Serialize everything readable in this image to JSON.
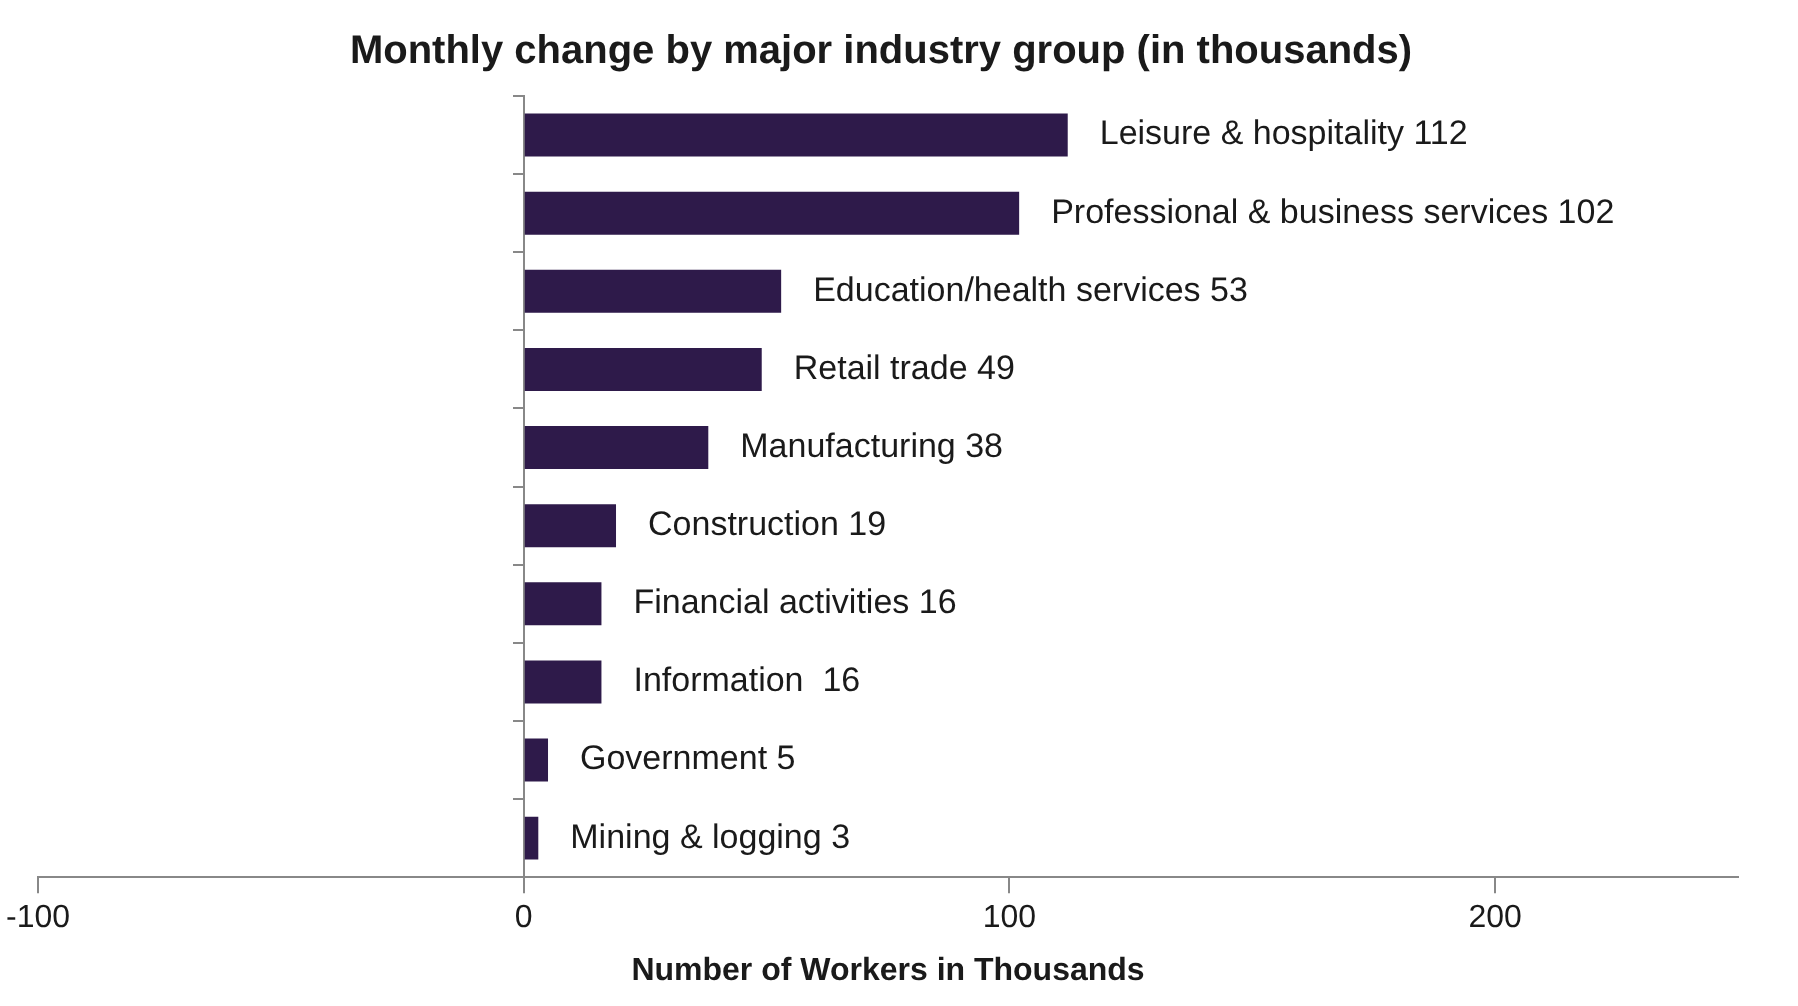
{
  "chart_data": {
    "type": "bar",
    "orientation": "horizontal",
    "title": "Monthly change by major industry group (in thousands)",
    "xlabel": "Number of Workers in Thousands",
    "categories": [
      "Leisure & hospitality 112",
      "Professional & business services 102",
      "Education/health services 53",
      "Retail trade 49",
      "Manufacturing 38",
      "Construction 19",
      "Financial activities 16",
      "Information  16",
      "Government 5",
      "Mining & logging 3"
    ],
    "values": [
      112,
      102,
      53,
      49,
      38,
      19,
      16,
      16,
      5,
      3
    ],
    "color": "#2e1a4a",
    "xlim": [
      -100,
      250
    ],
    "xticks": [
      -100,
      0,
      100,
      200
    ],
    "grid": false,
    "legend": false
  }
}
